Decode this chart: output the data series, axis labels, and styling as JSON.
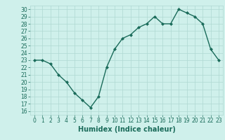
{
  "x": [
    0,
    1,
    2,
    3,
    4,
    5,
    6,
    7,
    8,
    9,
    10,
    11,
    12,
    13,
    14,
    15,
    16,
    17,
    18,
    19,
    20,
    21,
    22,
    23
  ],
  "y": [
    23,
    23,
    22.5,
    21,
    20,
    18.5,
    17.5,
    16.5,
    18,
    22,
    24.5,
    26,
    26.5,
    27.5,
    28,
    29,
    28,
    28,
    30,
    29.5,
    29,
    28,
    24.5,
    23
  ],
  "line_color": "#1a6b5a",
  "marker": "D",
  "marker_size": 2,
  "bg_color": "#cff0eb",
  "grid_color": "#aed8d2",
  "xlabel": "Humidex (Indice chaleur)",
  "xlim": [
    -0.5,
    23.5
  ],
  "ylim": [
    15.5,
    30.5
  ],
  "yticks": [
    16,
    17,
    18,
    19,
    20,
    21,
    22,
    23,
    24,
    25,
    26,
    27,
    28,
    29,
    30
  ],
  "xticks": [
    0,
    1,
    2,
    3,
    4,
    5,
    6,
    7,
    8,
    9,
    10,
    11,
    12,
    13,
    14,
    15,
    16,
    17,
    18,
    19,
    20,
    21,
    22,
    23
  ],
  "tick_fontsize": 5.5,
  "xlabel_fontsize": 7,
  "line_width": 1.0
}
